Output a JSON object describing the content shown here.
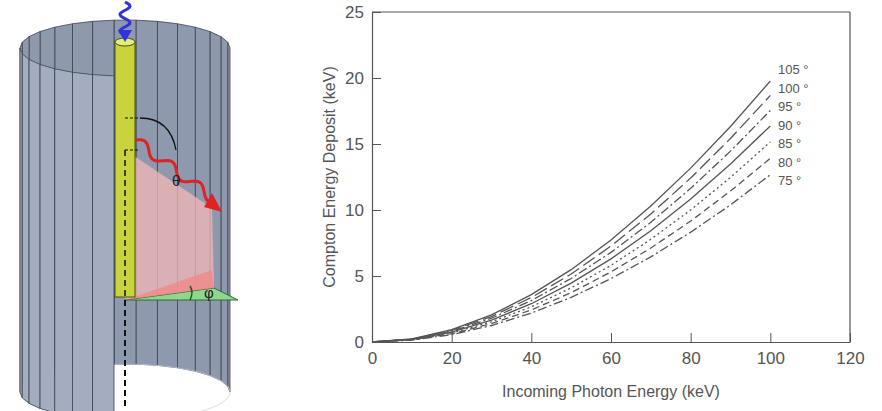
{
  "diagram": {
    "theta_label": "θ",
    "phi_label": "φ"
  },
  "chart_data": {
    "type": "line",
    "x_label": "Incoming Photon Energy (keV)",
    "y_label": "Compton Energy Deposit (keV)",
    "x": [
      0,
      10,
      20,
      30,
      40,
      50,
      60,
      70,
      80,
      90,
      100
    ],
    "series": [
      {
        "name": "105 °",
        "color": "#555555",
        "line_style": "solid",
        "values": [
          0,
          0.24,
          0.94,
          2.06,
          3.59,
          5.48,
          7.73,
          10.3,
          13.17,
          16.33,
          19.77
        ]
      },
      {
        "name": "100 °",
        "color": "#555555",
        "line_style": "longdash",
        "values": [
          0,
          0.22,
          0.88,
          1.93,
          3.37,
          5.15,
          7.27,
          9.7,
          12.42,
          15.42,
          18.68
        ]
      },
      {
        "name": "95 °",
        "color": "#555555",
        "line_style": "dashdot",
        "values": [
          0,
          0.21,
          0.82,
          1.8,
          3.14,
          4.81,
          6.79,
          9.07,
          11.64,
          14.46,
          17.54
        ]
      },
      {
        "name": "90 °",
        "color": "#555555",
        "line_style": "solid",
        "values": [
          0,
          0.19,
          0.75,
          1.66,
          2.9,
          4.46,
          6.3,
          8.43,
          10.83,
          13.48,
          16.37
        ]
      },
      {
        "name": "85 °",
        "color": "#555555",
        "line_style": "dotted",
        "values": [
          0,
          0.18,
          0.69,
          1.53,
          2.67,
          4.1,
          5.81,
          7.78,
          10.0,
          12.47,
          15.16
        ]
      },
      {
        "name": "80 °",
        "color": "#555555",
        "line_style": "dashed",
        "values": [
          0,
          0.16,
          0.63,
          1.39,
          2.43,
          3.74,
          5.31,
          7.12,
          9.16,
          11.44,
          13.92
        ]
      },
      {
        "name": "75 °",
        "color": "#555555",
        "line_style": "dashdot",
        "values": [
          0,
          0.14,
          0.56,
          1.25,
          2.19,
          3.38,
          4.8,
          6.45,
          8.32,
          10.39,
          12.67
        ]
      }
    ],
    "xlim": [
      0,
      120
    ],
    "ylim": [
      0,
      25
    ],
    "xticks": [
      0,
      20,
      40,
      60,
      80,
      100,
      120
    ],
    "yticks": [
      0,
      5,
      10,
      15,
      20,
      25
    ],
    "legend": "upper right"
  }
}
